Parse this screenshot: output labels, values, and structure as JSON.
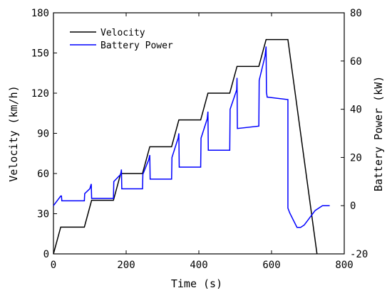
{
  "chart_data": {
    "type": "line",
    "title": "",
    "xlabel": "Time (s)",
    "ylabel": "Velocity (km/h)",
    "y2label": "Battery Power (kW)",
    "xlim": [
      0,
      800
    ],
    "ylim": [
      0,
      180
    ],
    "y2lim": [
      -20,
      80
    ],
    "xticks": [
      0,
      200,
      400,
      600,
      800
    ],
    "yticks": [
      0,
      30,
      60,
      90,
      120,
      150,
      180
    ],
    "y2ticks": [
      -20,
      0,
      20,
      40,
      60,
      80
    ],
    "grid": false,
    "legend_position": "top-left",
    "series": [
      {
        "name": "Velocity",
        "axis": "left",
        "color": "#000000",
        "x": [
          0,
          20,
          85,
          105,
          165,
          185,
          245,
          265,
          325,
          345,
          405,
          425,
          485,
          505,
          565,
          585,
          645,
          725
        ],
        "y": [
          0,
          20,
          20,
          40,
          40,
          60,
          60,
          80,
          80,
          100,
          100,
          120,
          120,
          140,
          140,
          160,
          160,
          0
        ]
      },
      {
        "name": "Battery Power",
        "axis": "right",
        "color": "#0000ff",
        "x": [
          0,
          20,
          22,
          23,
          85,
          86,
          100,
          104,
          105,
          165,
          166,
          185,
          187,
          188,
          245,
          246,
          262,
          265,
          266,
          325,
          326,
          343,
          345,
          346,
          405,
          406,
          423,
          425,
          426,
          485,
          486,
          504,
          505,
          506,
          565,
          566,
          582,
          585,
          586,
          588,
          590,
          645,
          645,
          650,
          660,
          670,
          680,
          690,
          700,
          720,
          740,
          760
        ],
        "y": [
          0,
          4,
          4,
          2,
          2,
          5,
          7,
          9,
          3,
          3,
          10,
          13,
          15,
          7,
          7,
          13,
          19,
          21,
          11,
          11,
          20,
          28,
          30,
          16,
          16,
          28,
          36,
          39,
          23,
          23,
          40,
          48,
          53,
          32,
          33,
          52,
          62,
          66,
          47,
          45,
          45,
          44,
          -1,
          -3,
          -6,
          -9,
          -9,
          -8,
          -6,
          -2,
          0,
          0
        ]
      }
    ]
  }
}
